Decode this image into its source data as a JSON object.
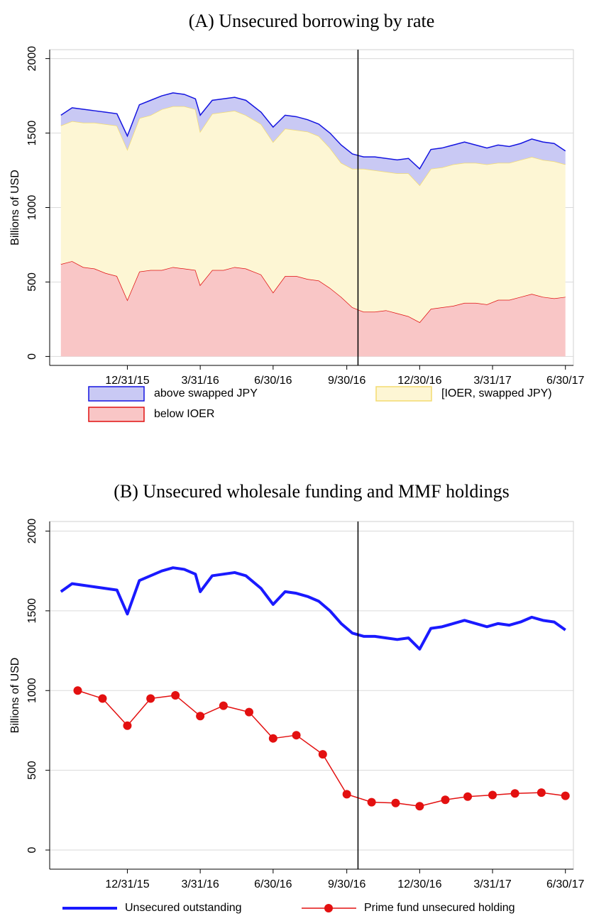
{
  "chart_data": [
    {
      "type": "area",
      "title": "(A) Unsecured borrowing by rate",
      "y_label": "Billions of USD",
      "x": [
        "10/09/15",
        "10/23/15",
        "11/06/15",
        "11/20/15",
        "12/04/15",
        "12/18/15",
        "12/31/15",
        "01/15/16",
        "01/29/16",
        "02/12/16",
        "02/26/16",
        "03/11/16",
        "03/25/16",
        "03/31/16",
        "04/15/16",
        "04/29/16",
        "05/13/16",
        "05/27/16",
        "06/15/16",
        "06/30/16",
        "07/15/16",
        "07/29/16",
        "08/12/16",
        "08/26/16",
        "09/09/16",
        "09/23/16",
        "10/07/16",
        "10/21/16",
        "11/04/16",
        "11/18/16",
        "12/02/16",
        "12/16/16",
        "12/30/16",
        "01/13/17",
        "01/27/17",
        "02/10/17",
        "02/24/17",
        "03/10/17",
        "03/24/17",
        "04/07/17",
        "04/21/17",
        "05/05/17",
        "05/19/17",
        "06/02/17",
        "06/16/17",
        "06/30/17"
      ],
      "series": [
        {
          "name": "above swapped JPY",
          "color": "#1414e0",
          "fill": "#c9c9f4",
          "values": [
            70,
            90,
            90,
            80,
            80,
            80,
            90,
            90,
            100,
            90,
            90,
            80,
            70,
            110,
            90,
            90,
            90,
            100,
            80,
            100,
            90,
            90,
            80,
            80,
            100,
            120,
            100,
            80,
            90,
            90,
            90,
            100,
            110,
            130,
            130,
            130,
            140,
            120,
            110,
            120,
            110,
            110,
            120,
            120,
            120,
            90
          ]
        },
        {
          "name": "[IOER, swapped JPY)",
          "color": "#f3dc70",
          "fill": "#fdf6d4",
          "values": [
            930,
            940,
            970,
            980,
            1000,
            1010,
            1010,
            1030,
            1040,
            1080,
            1080,
            1090,
            1080,
            1030,
            1050,
            1060,
            1050,
            1030,
            1010,
            1010,
            990,
            980,
            990,
            970,
            940,
            900,
            930,
            960,
            950,
            930,
            940,
            960,
            920,
            940,
            940,
            950,
            940,
            940,
            940,
            920,
            920,
            920,
            920,
            920,
            920,
            890
          ]
        },
        {
          "name": "below IOER",
          "color": "#e01010",
          "fill": "#f9c6c6",
          "values": [
            620,
            640,
            600,
            590,
            560,
            540,
            380,
            570,
            580,
            580,
            600,
            590,
            580,
            480,
            580,
            580,
            600,
            590,
            550,
            430,
            540,
            540,
            520,
            510,
            460,
            400,
            330,
            300,
            300,
            310,
            290,
            270,
            230,
            320,
            330,
            340,
            360,
            360,
            350,
            380,
            380,
            400,
            420,
            400,
            390,
            400
          ]
        }
      ],
      "xlim": [
        "09/25/15",
        "07/10/17"
      ],
      "xticks": [
        "12/31/15",
        "3/31/16",
        "6/30/16",
        "9/30/16",
        "12/30/16",
        "3/31/17",
        "6/30/17"
      ],
      "ylim": [
        -60,
        2060
      ],
      "yticks": [
        0,
        500,
        1000,
        1500,
        2000
      ],
      "vline": "10/14/16",
      "grid": true
    },
    {
      "type": "line",
      "title": "(B) Unsecured wholesale funding and MMF holdings",
      "y_label": "Billions of USD",
      "series": [
        {
          "name": "Unsecured outstanding",
          "color": "#1a1aff",
          "x": [
            "10/09/15",
            "10/23/15",
            "11/06/15",
            "11/20/15",
            "12/04/15",
            "12/18/15",
            "12/31/15",
            "01/15/16",
            "01/29/16",
            "02/12/16",
            "02/26/16",
            "03/11/16",
            "03/25/16",
            "03/31/16",
            "04/15/16",
            "04/29/16",
            "05/13/16",
            "05/27/16",
            "06/15/16",
            "06/30/16",
            "07/15/16",
            "07/29/16",
            "08/12/16",
            "08/26/16",
            "09/09/16",
            "09/23/16",
            "10/07/16",
            "10/21/16",
            "11/04/16",
            "11/18/16",
            "12/02/16",
            "12/16/16",
            "12/30/16",
            "01/13/17",
            "01/27/17",
            "02/10/17",
            "02/24/17",
            "03/10/17",
            "03/24/17",
            "04/07/17",
            "04/21/17",
            "05/05/17",
            "05/19/17",
            "06/02/17",
            "06/16/17",
            "06/30/17"
          ],
          "values": [
            1620,
            1670,
            1660,
            1650,
            1640,
            1630,
            1480,
            1690,
            1720,
            1750,
            1770,
            1760,
            1730,
            1620,
            1720,
            1730,
            1740,
            1720,
            1640,
            1540,
            1620,
            1610,
            1590,
            1560,
            1500,
            1420,
            1360,
            1340,
            1340,
            1330,
            1320,
            1330,
            1260,
            1390,
            1400,
            1420,
            1440,
            1420,
            1400,
            1420,
            1410,
            1430,
            1460,
            1440,
            1430,
            1380
          ]
        },
        {
          "name": "Prime fund unsecured holding",
          "color": "#e31010",
          "marker": "circle",
          "x": [
            "10/30/15",
            "11/30/15",
            "12/31/15",
            "01/29/16",
            "02/29/16",
            "03/31/16",
            "04/29/16",
            "05/31/16",
            "06/30/16",
            "07/29/16",
            "08/31/16",
            "09/30/16",
            "10/31/16",
            "11/30/16",
            "12/30/16",
            "01/31/17",
            "02/28/17",
            "03/31/17",
            "04/28/17",
            "05/31/17",
            "06/30/17"
          ],
          "values": [
            1000,
            950,
            780,
            950,
            970,
            840,
            905,
            865,
            700,
            720,
            600,
            350,
            300,
            295,
            275,
            315,
            335,
            345,
            355,
            360,
            340
          ]
        }
      ],
      "xlim": [
        "09/25/15",
        "07/10/17"
      ],
      "xticks": [
        "12/31/15",
        "3/31/16",
        "6/30/16",
        "9/30/16",
        "12/30/16",
        "3/31/17",
        "6/30/17"
      ],
      "ylim": [
        -120,
        2060
      ],
      "yticks": [
        0,
        500,
        1000,
        1500,
        2000
      ],
      "vline": "10/14/16",
      "grid": true
    }
  ]
}
